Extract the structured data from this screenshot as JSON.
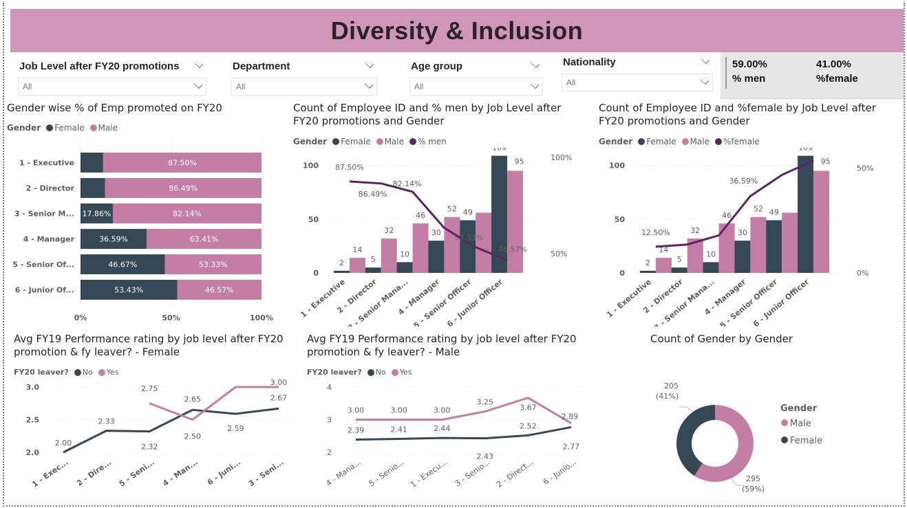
{
  "header": {
    "title": "Diversity & Inclusion"
  },
  "colors": {
    "female": "#344857",
    "male": "#c47ea6",
    "line": "#5c2462",
    "banner": "#d096b7"
  },
  "slicers": [
    {
      "title": "Job Level after FY20 promotions",
      "value": "All"
    },
    {
      "title": "Department",
      "value": "All"
    },
    {
      "title": "Age group",
      "value": "All"
    },
    {
      "title": "Nationality",
      "value": "All"
    }
  ],
  "kpis": [
    {
      "value": "59.00%",
      "label": "% men"
    },
    {
      "value": "41.00%",
      "label": "%female"
    }
  ],
  "legend_labels": {
    "gender": "Gender",
    "female": "Female",
    "male": "Male",
    "pct_men": "% men",
    "pct_female": "%female",
    "leaver": "FY20 leaver?",
    "no": "No",
    "yes": "Yes"
  },
  "chart_data": [
    {
      "id": "promoted_pct",
      "type": "bar",
      "orientation": "horizontal-stacked-100",
      "title": "Gender wise % of Emp promoted on FY20",
      "categories": [
        "1 - Executive",
        "2 - Director",
        "3 - Senior M...",
        "4 - Manager",
        "5 - Senior Of...",
        "6 - Junior Of..."
      ],
      "series": [
        {
          "name": "Female",
          "values": [
            12.5,
            13.51,
            17.86,
            36.59,
            46.67,
            53.43
          ],
          "labels": [
            "",
            "",
            "17.86%",
            "36.59%",
            "46.67%",
            "53.43%"
          ]
        },
        {
          "name": "Male",
          "values": [
            87.5,
            86.49,
            82.14,
            63.41,
            53.33,
            46.57
          ],
          "labels": [
            "87.50%",
            "86.49%",
            "82.14%",
            "63.41%",
            "53.33%",
            "46.57%"
          ]
        }
      ],
      "xticks": [
        "0%",
        "50%",
        "100%"
      ],
      "legend": "top-left"
    },
    {
      "id": "count_pct_men",
      "type": "bar",
      "title": "Count of Employee ID and % men by Job Level after FY20 promotions and Gender",
      "categories": [
        "1 - Executive",
        "2 - Director",
        "3 - Senior Mana...",
        "4 - Manager",
        "5 - Senior Officer",
        "6 - Junior Officer"
      ],
      "series": [
        {
          "name": "Female",
          "values": [
            2,
            5,
            10,
            30,
            49,
            109
          ]
        },
        {
          "name": "Male",
          "values": [
            14,
            32,
            46,
            52,
            56,
            95
          ],
          "labels": [
            "14",
            "32",
            "46",
            "52",
            "",
            "95"
          ]
        },
        {
          "name": "% men",
          "type": "line",
          "values": [
            87.5,
            86.49,
            82.14,
            63.41,
            53.33,
            46.57
          ],
          "labels": [
            "87.50%",
            "86.49%",
            "82.14%",
            "",
            "53.33%",
            "46.57%"
          ]
        }
      ],
      "yticks": [
        "0",
        "50",
        "100"
      ],
      "ylim": [
        0,
        110
      ],
      "y2ticks": [
        "50%",
        "100%"
      ],
      "y2lim": [
        40,
        100
      ],
      "legend": "top-left"
    },
    {
      "id": "count_pct_female",
      "type": "bar",
      "title": "Count of Employee ID and %female by Job Level after FY20 promotions and Gender",
      "categories": [
        "1 - Executive",
        "2 - Director",
        "3 - Senior Mana...",
        "4 - Manager",
        "5 - Senior Officer",
        "6 - Junior Officer"
      ],
      "series": [
        {
          "name": "Female",
          "values": [
            2,
            5,
            10,
            30,
            49,
            109
          ]
        },
        {
          "name": "Male",
          "values": [
            14,
            32,
            46,
            52,
            56,
            95
          ],
          "labels": [
            "14",
            "32",
            "46",
            "52",
            "",
            "95"
          ]
        },
        {
          "name": "%female",
          "type": "line",
          "values": [
            12.5,
            13.51,
            17.86,
            36.59,
            46.67,
            53.43
          ],
          "labels": [
            "12.50%",
            "",
            "",
            "36.59%",
            "",
            ""
          ]
        }
      ],
      "yticks": [
        "0",
        "50",
        "100"
      ],
      "ylim": [
        0,
        110
      ],
      "y2ticks": [
        "0%",
        "50%"
      ],
      "y2lim": [
        0,
        55
      ],
      "legend": "top-left"
    },
    {
      "id": "perf_female",
      "type": "line",
      "title": "Avg FY19 Performance rating by job level after FY20 promotion & fy leaver? - Female",
      "categories": [
        "1 - Exec...",
        "2 - Dire...",
        "5 - Seni...",
        "4 - Man...",
        "6 - Juni...",
        "3 - Seni..."
      ],
      "series": [
        {
          "name": "No",
          "values": [
            2.0,
            2.33,
            2.32,
            2.65,
            2.59,
            2.67
          ]
        },
        {
          "name": "Yes",
          "values": [
            null,
            null,
            2.75,
            2.5,
            3.0,
            3.0
          ]
        }
      ],
      "yticks": [
        "2.0",
        "2.5",
        "3.0"
      ],
      "ylim": [
        2.0,
        3.0
      ],
      "legend": "top-left"
    },
    {
      "id": "perf_male",
      "type": "line",
      "title": "Avg FY19 Performance rating by job level after FY20 promotion & fy leaver? - Male",
      "categories": [
        "4 - Mana...",
        "5 - Senio...",
        "1 - Execu...",
        "3 - Senio...",
        "2 - Direct...",
        "6 - Junio..."
      ],
      "series": [
        {
          "name": "No",
          "values": [
            2.39,
            2.41,
            2.44,
            2.43,
            2.52,
            2.77
          ]
        },
        {
          "name": "Yes",
          "values": [
            3.0,
            3.0,
            3.0,
            3.25,
            3.67,
            2.89
          ]
        }
      ],
      "yticks": [
        "2",
        "3",
        "4"
      ],
      "ylim": [
        2,
        4
      ],
      "legend": "top-left"
    },
    {
      "id": "gender_donut",
      "type": "pie",
      "variant": "donut",
      "title": "Count of Gender by Gender",
      "categories": [
        "Male",
        "Female"
      ],
      "values": [
        295,
        205
      ],
      "labels": [
        "295 (59%)",
        "205 (41%)"
      ],
      "legend": "right"
    }
  ]
}
